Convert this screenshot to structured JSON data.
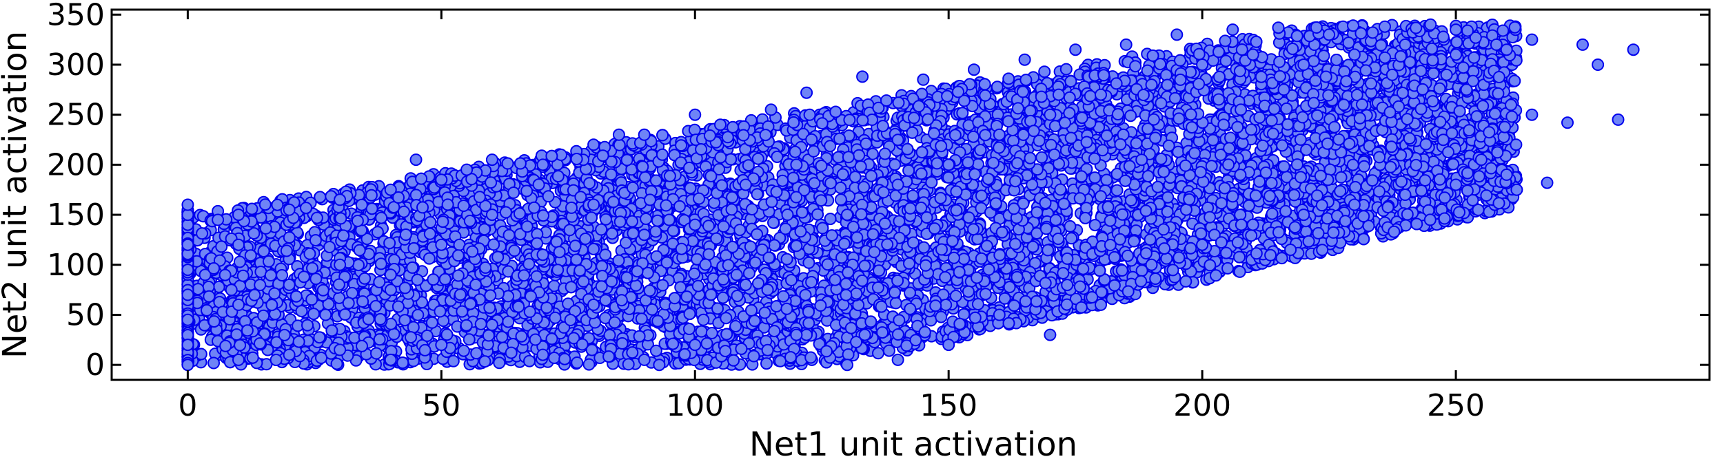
{
  "chart_data": {
    "type": "scatter",
    "title": "",
    "xlabel": "Net1 unit activation",
    "ylabel": "Net2 unit activation",
    "xlim": [
      -15,
      300
    ],
    "ylim": [
      -15,
      355
    ],
    "x_ticks": [
      0,
      50,
      100,
      150,
      200,
      250
    ],
    "y_ticks": [
      0,
      50,
      100,
      150,
      200,
      250,
      300,
      350
    ],
    "x_tick_labels": [
      "0",
      "50",
      "100",
      "150",
      "200",
      "250"
    ],
    "y_tick_labels": [
      "0",
      "50",
      "100",
      "150",
      "200",
      "250",
      "300",
      "350"
    ],
    "grid": false,
    "legend": "none",
    "marker_face_color": "#6f84f6",
    "marker_edge_color": "#0000ee",
    "series": [
      {
        "points": [
          [
            0,
            0
          ],
          [
            0,
            20
          ],
          [
            0,
            45
          ],
          [
            0,
            70
          ],
          [
            0,
            95
          ],
          [
            0,
            120
          ],
          [
            0,
            140
          ],
          [
            0,
            150
          ],
          [
            0,
            160
          ],
          [
            10,
            5
          ],
          [
            10,
            60
          ],
          [
            10,
            120
          ],
          [
            10,
            150
          ],
          [
            20,
            10
          ],
          [
            20,
            80
          ],
          [
            20,
            155
          ],
          [
            30,
            15
          ],
          [
            30,
            100
          ],
          [
            30,
            165
          ],
          [
            40,
            5
          ],
          [
            40,
            90
          ],
          [
            40,
            175
          ],
          [
            45,
            205
          ],
          [
            50,
            20
          ],
          [
            50,
            120
          ],
          [
            50,
            185
          ],
          [
            55,
            195
          ],
          [
            60,
            40
          ],
          [
            60,
            150
          ],
          [
            60,
            205
          ],
          [
            70,
            10
          ],
          [
            70,
            110
          ],
          [
            70,
            200
          ],
          [
            80,
            60
          ],
          [
            80,
            160
          ],
          [
            80,
            220
          ],
          [
            85,
            230
          ],
          [
            90,
            5
          ],
          [
            90,
            130
          ],
          [
            90,
            230
          ],
          [
            100,
            20
          ],
          [
            100,
            140
          ],
          [
            100,
            250
          ],
          [
            105,
            240
          ],
          [
            110,
            80
          ],
          [
            110,
            180
          ],
          [
            115,
            255
          ],
          [
            120,
            30
          ],
          [
            120,
            200
          ],
          [
            122,
            272
          ],
          [
            130,
            0
          ],
          [
            130,
            150
          ],
          [
            133,
            288
          ],
          [
            140,
            5
          ],
          [
            140,
            180
          ],
          [
            145,
            285
          ],
          [
            150,
            20
          ],
          [
            150,
            200
          ],
          [
            155,
            295
          ],
          [
            160,
            50
          ],
          [
            160,
            230
          ],
          [
            165,
            305
          ],
          [
            170,
            30
          ],
          [
            170,
            250
          ],
          [
            175,
            315
          ],
          [
            180,
            60
          ],
          [
            180,
            270
          ],
          [
            185,
            320
          ],
          [
            190,
            100
          ],
          [
            190,
            280
          ],
          [
            195,
            330
          ],
          [
            200,
            120
          ],
          [
            200,
            300
          ],
          [
            206,
            335
          ],
          [
            210,
            140
          ],
          [
            210,
            310
          ],
          [
            215,
            337
          ],
          [
            220,
            150
          ],
          [
            220,
            300
          ],
          [
            225,
            330
          ],
          [
            230,
            160
          ],
          [
            230,
            310
          ],
          [
            236,
            338
          ],
          [
            240,
            170
          ],
          [
            240,
            320
          ],
          [
            245,
            340
          ],
          [
            250,
            180
          ],
          [
            250,
            310
          ],
          [
            255,
            205
          ],
          [
            258,
            320
          ],
          [
            260,
            190
          ],
          [
            262,
            175
          ],
          [
            265,
            250
          ],
          [
            265,
            325
          ],
          [
            268,
            182
          ],
          [
            272,
            242
          ],
          [
            275,
            320
          ],
          [
            278,
            300
          ],
          [
            282,
            245
          ],
          [
            285,
            315
          ],
          [
            260,
            315
          ],
          [
            250,
            335
          ]
        ]
      }
    ]
  }
}
